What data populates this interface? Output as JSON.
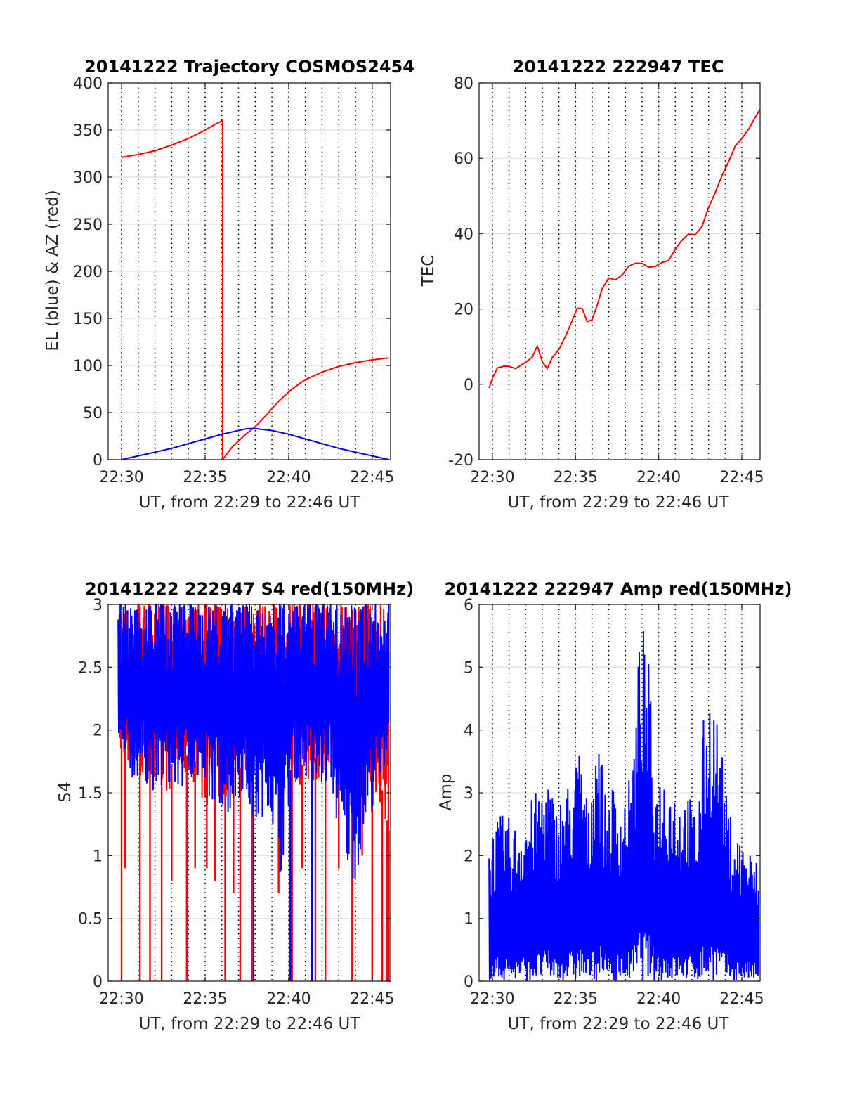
{
  "colors": {
    "el_series": "#0000ff",
    "az_series": "#ff0000",
    "grid": "#e0e0e0",
    "dotted_lines": "#000000",
    "axes": "#262626"
  },
  "chart_data": [
    {
      "id": "trajectory",
      "type": "line",
      "title": "20141222 Trajectory COSMOS2454",
      "xlabel": "UT, from 22:29 to 22:46 UT",
      "ylabel": "EL (blue) & AZ (red)",
      "xlim_minutes": [
        29.2,
        46.1
      ],
      "xtick_values": [
        30,
        35,
        40,
        45
      ],
      "xtick_labels": [
        "22:30",
        "22:35",
        "22:40",
        "22:45"
      ],
      "ylim": [
        0,
        400
      ],
      "yticks": [
        0,
        50,
        100,
        150,
        200,
        250,
        300,
        350,
        400
      ],
      "ytick_labels": [
        "0",
        "50",
        "100",
        "150",
        "200",
        "250",
        "300",
        "350",
        "400"
      ],
      "grid": true,
      "series": [
        {
          "color": "#ff0000",
          "x_minutes": [
            30.0,
            31.0,
            32.0,
            33.0,
            34.0,
            35.0,
            35.7,
            36.05,
            36.05,
            36.6,
            37.3,
            38.0,
            38.7,
            39.4,
            40.2,
            41.0,
            42.0,
            43.0,
            44.0,
            45.0,
            46.0
          ],
          "values": [
            321,
            324,
            328,
            334,
            341,
            350,
            357,
            360,
            0,
            13,
            25,
            35,
            48,
            62,
            75,
            85,
            93,
            99,
            103,
            106,
            108
          ]
        },
        {
          "color": "#0000ff",
          "x_minutes": [
            30.0,
            31.0,
            32.0,
            33.0,
            34.0,
            35.0,
            36.0,
            37.0,
            37.5,
            38.0,
            38.5,
            39.0,
            40.0,
            41.0,
            42.0,
            43.0,
            44.0,
            45.0,
            46.0
          ],
          "values": [
            0,
            4,
            8,
            12,
            17,
            22,
            27,
            31,
            33,
            33,
            32,
            31,
            27,
            22,
            17,
            12,
            8,
            4,
            0
          ]
        }
      ]
    },
    {
      "id": "tec",
      "type": "line",
      "title": "20141222 222947 TEC",
      "xlabel": "UT, from 22:29 to 22:46 UT",
      "ylabel": "TEC",
      "xlim_minutes": [
        29.2,
        46.1
      ],
      "xtick_values": [
        30,
        35,
        40,
        45
      ],
      "xtick_labels": [
        "22:30",
        "22:35",
        "22:40",
        "22:45"
      ],
      "ylim": [
        -20,
        80
      ],
      "yticks": [
        -20,
        0,
        20,
        40,
        60,
        80
      ],
      "ytick_labels": [
        "-20",
        "0",
        "20",
        "40",
        "60",
        "80"
      ],
      "grid": true,
      "series": [
        {
          "color": "#ff0000",
          "x_minutes": [
            29.8,
            30.0,
            30.3,
            30.7,
            31.0,
            31.4,
            31.7,
            32.0,
            32.4,
            32.7,
            33.0,
            33.3,
            33.6,
            34.0,
            34.4,
            34.8,
            35.1,
            35.4,
            35.7,
            36.0,
            36.3,
            36.6,
            37.0,
            37.4,
            37.8,
            38.2,
            38.6,
            39.0,
            39.4,
            39.8,
            40.2,
            40.6,
            41.0,
            41.4,
            41.8,
            42.2,
            42.6,
            43.0,
            43.4,
            43.8,
            44.2,
            44.6,
            45.0,
            45.4,
            45.8,
            46.1
          ],
          "values": [
            -1,
            2,
            4,
            5,
            5,
            4,
            5,
            6,
            7,
            10,
            6,
            4,
            7,
            9,
            13,
            17,
            20,
            20,
            17,
            17,
            21,
            25,
            28,
            28,
            29,
            31,
            32,
            32,
            31,
            31,
            32,
            33,
            36,
            38,
            40,
            40,
            42,
            47,
            51,
            55,
            59,
            63,
            65,
            68,
            71,
            73
          ]
        }
      ]
    },
    {
      "id": "s4",
      "type": "line",
      "title": "20141222 222947 S4 red(150MHz)",
      "xlabel": "UT, from 22:29 to 22:46 UT",
      "ylabel": "S4",
      "xlim_minutes": [
        29.2,
        46.1
      ],
      "xtick_values": [
        30,
        35,
        40,
        45
      ],
      "xtick_labels": [
        "22:30",
        "22:35",
        "22:40",
        "22:45"
      ],
      "ylim": [
        0,
        3
      ],
      "yticks": [
        0,
        0.5,
        1,
        1.5,
        2,
        2.5,
        3
      ],
      "ytick_labels": [
        "0",
        "0.5",
        "1",
        "1.5",
        "2",
        "2.5",
        "3"
      ],
      "grid": true,
      "noisy": true,
      "series": [
        {
          "color": "#ff0000",
          "x_minutes": [
            29.8,
            30.5,
            31.2,
            32.0,
            32.8,
            33.5,
            34.2,
            35.0,
            35.8,
            36.5,
            37.2,
            38.0,
            38.8,
            39.5,
            40.2,
            41.0,
            41.8,
            42.5,
            43.2,
            44.0,
            44.8,
            45.5,
            46.0
          ],
          "low": [
            1.9,
            1.6,
            1.6,
            1.5,
            1.5,
            1.6,
            1.6,
            1.4,
            1.4,
            1.5,
            1.5,
            1.7,
            1.6,
            1.8,
            1.6,
            1.5,
            1.6,
            1.6,
            1.6,
            1.6,
            1.5,
            1.4,
            1.0
          ],
          "high": [
            3,
            3,
            3,
            3,
            3,
            3,
            3,
            3,
            3,
            3,
            3,
            3,
            3,
            3,
            3,
            3,
            3,
            3,
            3,
            3,
            3,
            3,
            3
          ],
          "drops_x_minutes": [
            30.0,
            30.2,
            31.1,
            31.7,
            32.4,
            33.0,
            33.9,
            34.4,
            35.1,
            35.6,
            36.2,
            36.7,
            37.1,
            37.8,
            39.4,
            40.2,
            40.8,
            41.6,
            42.2,
            43.0,
            43.8,
            44.4,
            45.0,
            45.6,
            45.9,
            46.0
          ],
          "drops_low": [
            0,
            0.9,
            0,
            0,
            0,
            0.8,
            0,
            0.9,
            0.9,
            0.8,
            0,
            0.7,
            0,
            0,
            0.7,
            0,
            0.9,
            0,
            0,
            0.9,
            0,
            1.0,
            0,
            0,
            0,
            0
          ]
        },
        {
          "color": "#0000ff",
          "x_minutes": [
            29.8,
            30.5,
            31.2,
            32.0,
            32.8,
            33.5,
            34.2,
            35.0,
            35.8,
            36.5,
            37.2,
            38.0,
            38.8,
            39.5,
            40.2,
            41.0,
            41.8,
            42.5,
            43.2,
            44.0,
            44.8,
            45.5,
            46.0
          ],
          "low": [
            1.7,
            1.6,
            1.6,
            1.5,
            1.5,
            1.5,
            1.6,
            1.5,
            1.4,
            1.3,
            1.5,
            1.2,
            1.4,
            0.8,
            1.6,
            1.6,
            1.5,
            1.6,
            0.9,
            0.8,
            1.3,
            1.5,
            1.9
          ],
          "high": [
            3,
            3,
            3,
            3,
            3,
            3,
            3,
            3,
            3,
            3,
            3,
            3,
            3,
            3,
            3,
            3,
            3,
            3,
            3,
            3,
            3,
            3,
            3
          ],
          "drops_x_minutes": [
            37.9,
            40.1,
            41.4
          ],
          "drops_low": [
            0,
            0,
            0
          ]
        }
      ]
    },
    {
      "id": "amp",
      "type": "line",
      "title": "20141222 222947 Amp red(150MHz)",
      "xlabel": "UT, from 22:29 to 22:46 UT",
      "ylabel": "Amp",
      "xlim_minutes": [
        29.2,
        46.1
      ],
      "xtick_values": [
        30,
        35,
        40,
        45
      ],
      "xtick_labels": [
        "22:30",
        "22:35",
        "22:40",
        "22:45"
      ],
      "ylim": [
        0,
        6
      ],
      "yticks": [
        0,
        1,
        2,
        3,
        4,
        5,
        6
      ],
      "ytick_labels": [
        "0",
        "1",
        "2",
        "3",
        "4",
        "5",
        "6"
      ],
      "grid": true,
      "noisy": true,
      "series": [
        {
          "color": "#0000ff",
          "x_minutes": [
            29.8,
            30.3,
            30.8,
            31.3,
            31.8,
            32.3,
            32.8,
            33.3,
            33.8,
            34.3,
            34.8,
            35.3,
            35.8,
            36.3,
            36.8,
            37.3,
            37.8,
            38.3,
            38.6,
            38.9,
            39.1,
            39.4,
            39.8,
            40.3,
            40.8,
            41.3,
            41.8,
            42.3,
            42.7,
            43.1,
            43.4,
            43.7,
            44.1,
            44.5,
            45.0,
            45.5,
            46.0
          ],
          "low": [
            0,
            0,
            0,
            0,
            0,
            0,
            0,
            0,
            0,
            0,
            0,
            0,
            0,
            0,
            0,
            0,
            0,
            0,
            0,
            0,
            0,
            0,
            0,
            0,
            0,
            0,
            0,
            0,
            0,
            0,
            0,
            0,
            0,
            0,
            0,
            0,
            0
          ],
          "high": [
            2.3,
            2.6,
            2.7,
            2.5,
            2.7,
            2.9,
            3.1,
            3.4,
            2.8,
            3.1,
            3.3,
            3.9,
            2.7,
            4.5,
            2.9,
            3.2,
            2.9,
            3.3,
            4.1,
            5.9,
            5.6,
            5.1,
            3.2,
            3.5,
            3.3,
            3.0,
            3.0,
            2.7,
            4.2,
            4.7,
            4.5,
            3.9,
            2.9,
            2.5,
            2.3,
            2.1,
            1.9
          ]
        }
      ]
    }
  ]
}
